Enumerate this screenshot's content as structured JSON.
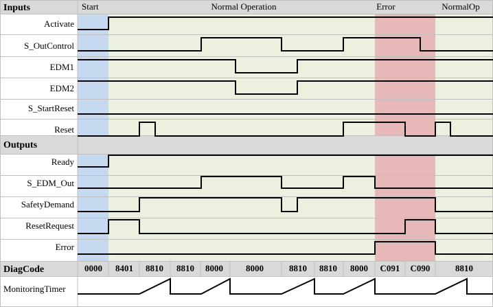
{
  "inputs_header": "Inputs",
  "outputs_header": "Outputs",
  "phases": [
    {
      "label": "Start",
      "kind": "start"
    },
    {
      "label": "Normal Operation",
      "kind": "normal"
    },
    {
      "label": "Error",
      "kind": "error"
    },
    {
      "label": "NormalOp",
      "kind": "normal"
    }
  ],
  "colors": {
    "start": "#c5d9f1",
    "normal": "#ebf1de",
    "error": "#e6b8b7",
    "header": "#d9d9d9",
    "grid": "#bfbfbf",
    "line": "#000000"
  },
  "inputs": [
    {
      "name": "Activate"
    },
    {
      "name": "S_OutControl"
    },
    {
      "name": "EDM1"
    },
    {
      "name": "EDM2"
    },
    {
      "name": "S_StartReset"
    },
    {
      "name": "Reset"
    }
  ],
  "outputs": [
    {
      "name": "Ready"
    },
    {
      "name": "S_EDM_Out"
    },
    {
      "name": "SafetyDemand"
    },
    {
      "name": "ResetRequest"
    },
    {
      "name": "Error"
    }
  ],
  "diag": {
    "label": "DiagCode",
    "codes": [
      "0000",
      "8401",
      "8810",
      "8810",
      "8000",
      "8000",
      "8810",
      "8810",
      "8000",
      "C091",
      "C090",
      "8810"
    ]
  },
  "timer": {
    "label": "MonitoringTimer"
  }
}
